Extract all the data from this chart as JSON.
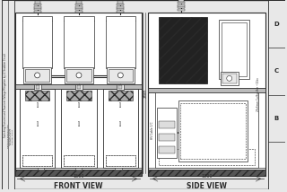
{
  "bg_color": "#e8e8e8",
  "line_color": "#2a2a2a",
  "front_view_label": "FRONT VIEW",
  "side_view_label": "SIDE VIEW",
  "front_width_label": "1500",
  "side_width_label": "1200",
  "height_label": "2500",
  "revision_labels": [
    "D",
    "C",
    "B"
  ],
  "left_text": "Switching Transient and Transient Voltage Mitigation by LC Snubber Circuit",
  "hv_cable_text": "HV Cable 1/C",
  "bus_bar_text": "25x5mm Cu Bus Bar ~11kv"
}
